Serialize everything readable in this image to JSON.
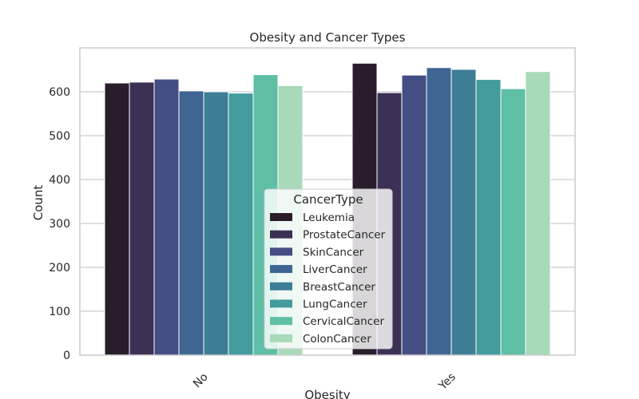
{
  "chart_data": {
    "type": "bar",
    "title": "Obesity and Cancer Types",
    "xlabel": "Obesity",
    "ylabel": "Count",
    "categories": [
      "No",
      "Yes"
    ],
    "ylim": [
      0,
      700
    ],
    "yticks": [
      0,
      100,
      200,
      300,
      400,
      500,
      600
    ],
    "grid": true,
    "legend": {
      "title": "CancerType",
      "placement": "lower-center"
    },
    "series": [
      {
        "name": "Leukemia",
        "color": "#291d2c",
        "values": [
          620,
          665
        ]
      },
      {
        "name": "ProstateCancer",
        "color": "#3c3154",
        "values": [
          622,
          598
        ]
      },
      {
        "name": "SkinCancer",
        "color": "#454e84",
        "values": [
          629,
          638
        ]
      },
      {
        "name": "LiverCancer",
        "color": "#3e6593",
        "values": [
          602,
          655
        ]
      },
      {
        "name": "BreastCancer",
        "color": "#3d7e96",
        "values": [
          600,
          651
        ]
      },
      {
        "name": "LungCancer",
        "color": "#439b9c",
        "values": [
          597,
          628
        ]
      },
      {
        "name": "CervicalCancer",
        "color": "#5fbfa6",
        "values": [
          639,
          607
        ]
      },
      {
        "name": "ColonCancer",
        "color": "#a8d9b9",
        "values": [
          614,
          646
        ]
      }
    ]
  }
}
